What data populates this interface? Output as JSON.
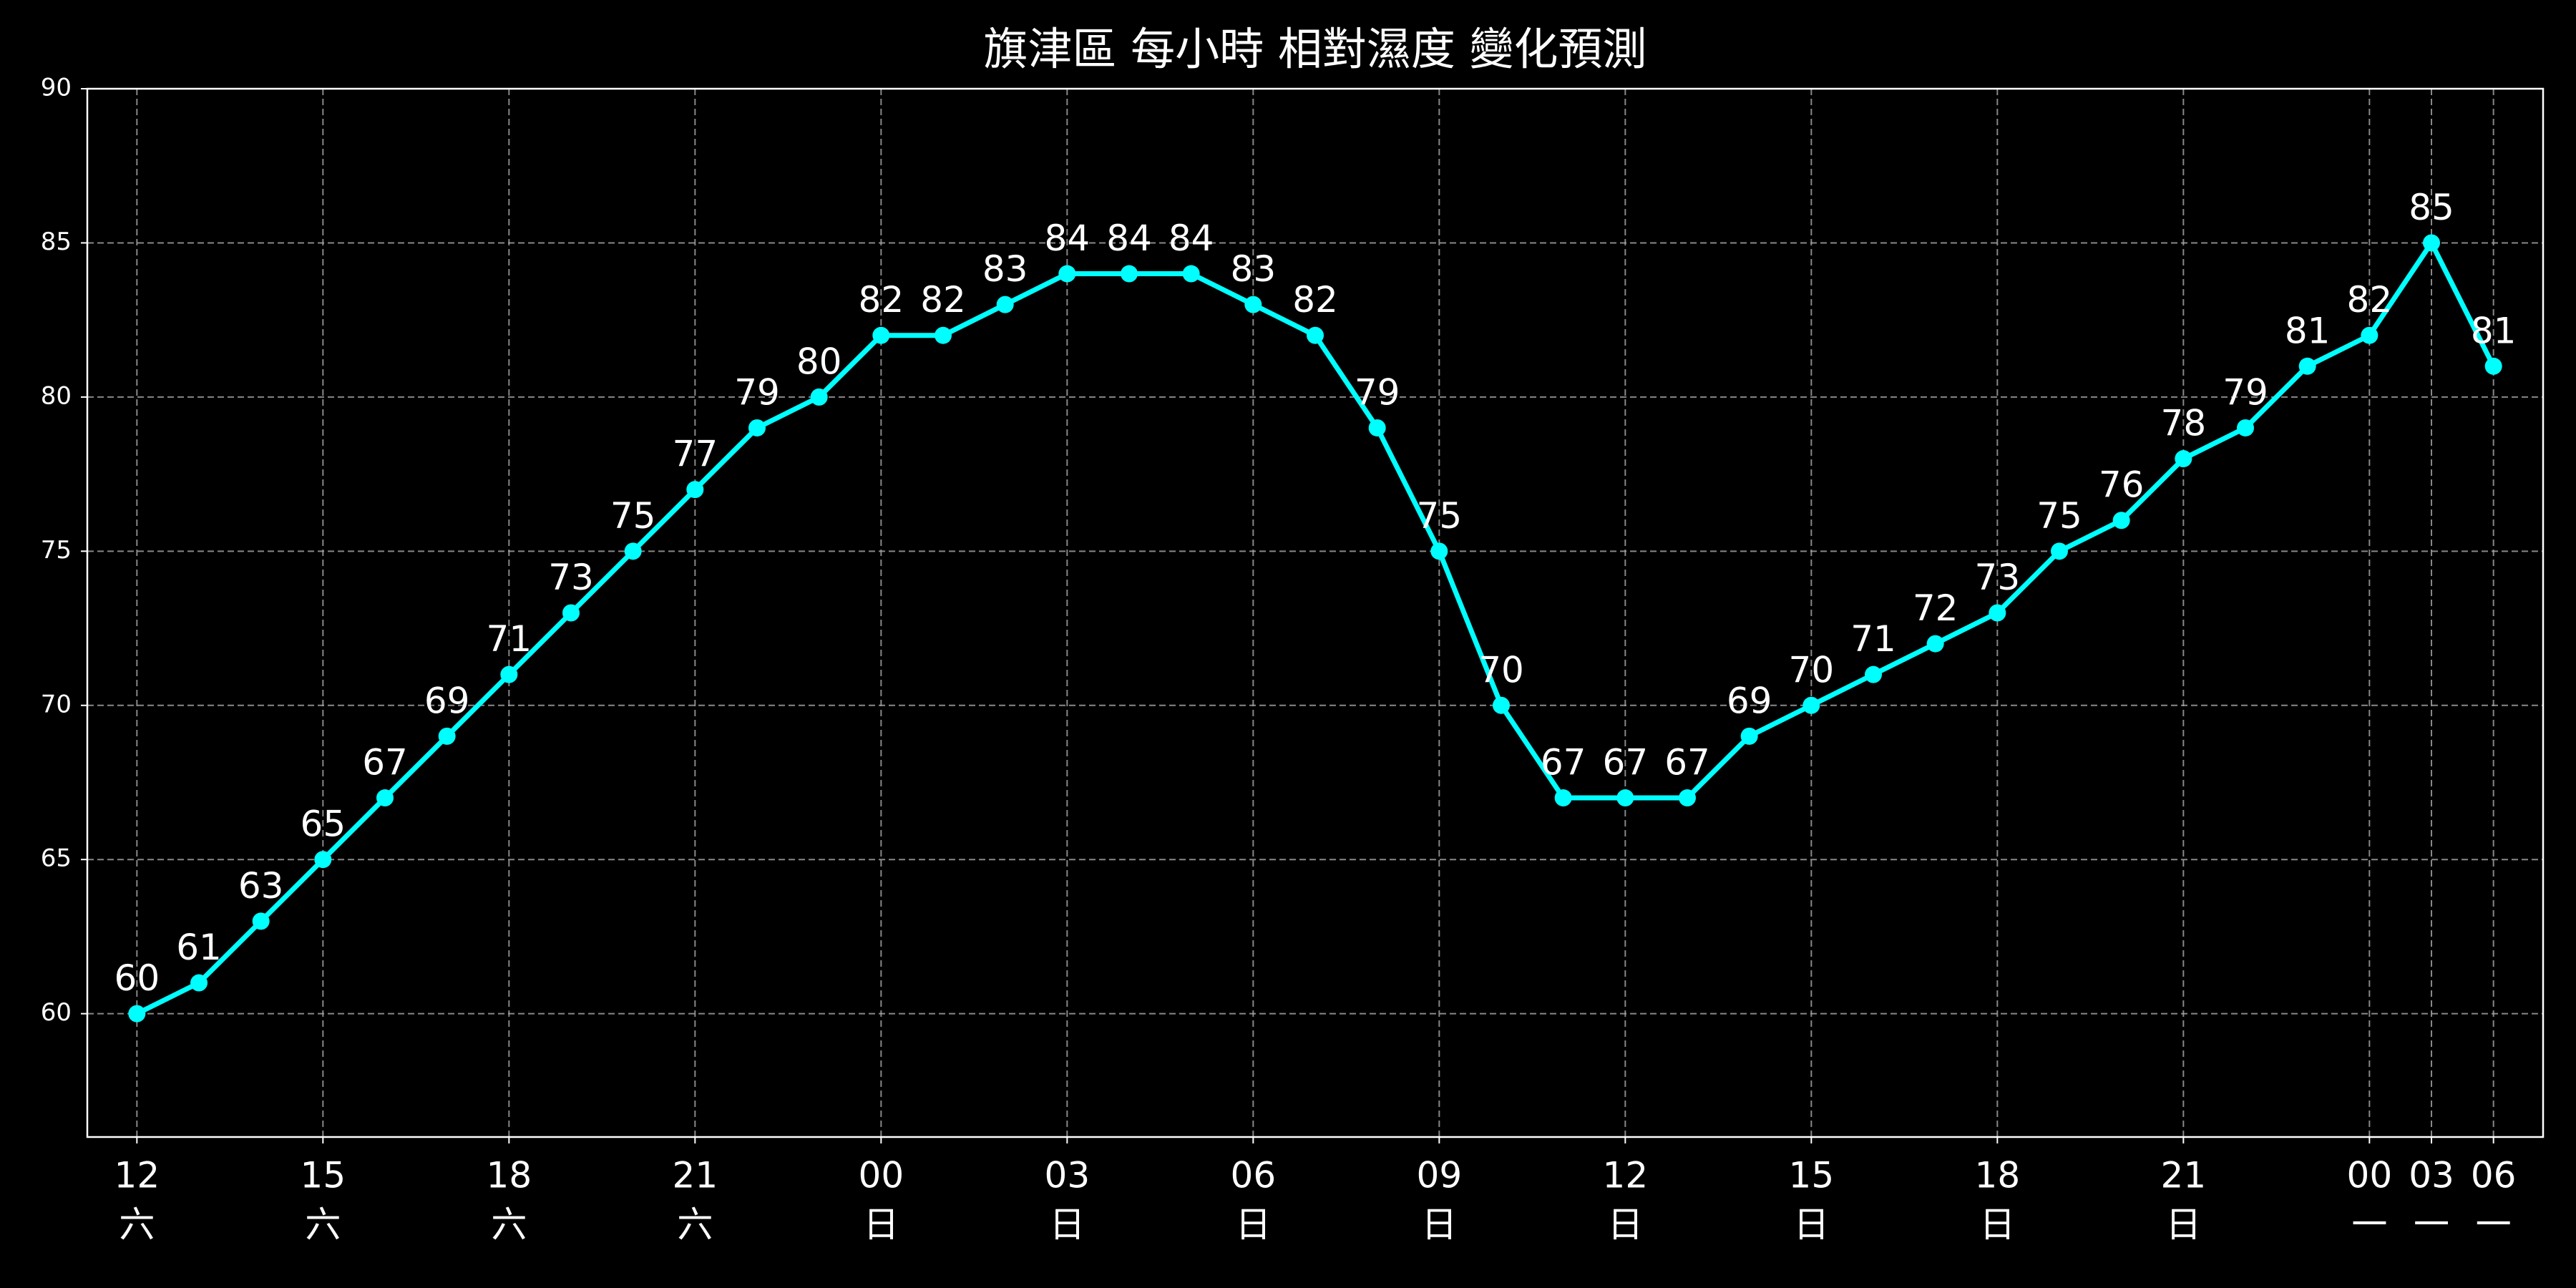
{
  "chart_data": {
    "type": "line",
    "title": "旗津區 每小時 相對濕度 變化預測",
    "categories": [
      "12",
      null,
      null,
      "15",
      null,
      null,
      "18",
      null,
      null,
      "21",
      null,
      null,
      "00",
      null,
      null,
      "03",
      null,
      null,
      "06",
      null,
      null,
      "09",
      null,
      null,
      "12",
      null,
      null,
      "15",
      null,
      null,
      "18",
      null,
      null,
      "21",
      null,
      null,
      "00",
      "03",
      "06"
    ],
    "days": [
      "六",
      null,
      null,
      "六",
      null,
      null,
      "六",
      null,
      null,
      "六",
      null,
      null,
      "日",
      null,
      null,
      "日",
      null,
      null,
      "日",
      null,
      null,
      "日",
      null,
      null,
      "日",
      null,
      null,
      "日",
      null,
      null,
      "日",
      null,
      null,
      "日",
      null,
      null,
      "一",
      "一",
      "一"
    ],
    "series": [
      {
        "color": "#00ffff",
        "values": [
          60,
          61,
          63,
          65,
          67,
          69,
          71,
          73,
          75,
          77,
          79,
          80,
          82,
          82,
          83,
          84,
          84,
          84,
          83,
          82,
          79,
          75,
          70,
          67,
          67,
          67,
          69,
          70,
          71,
          72,
          73,
          75,
          76,
          78,
          79,
          81,
          82,
          85,
          81
        ]
      }
    ],
    "ylim": [
      56,
      90
    ],
    "yticks": [
      60,
      65,
      70,
      75,
      80,
      85,
      90
    ],
    "grid": true
  }
}
